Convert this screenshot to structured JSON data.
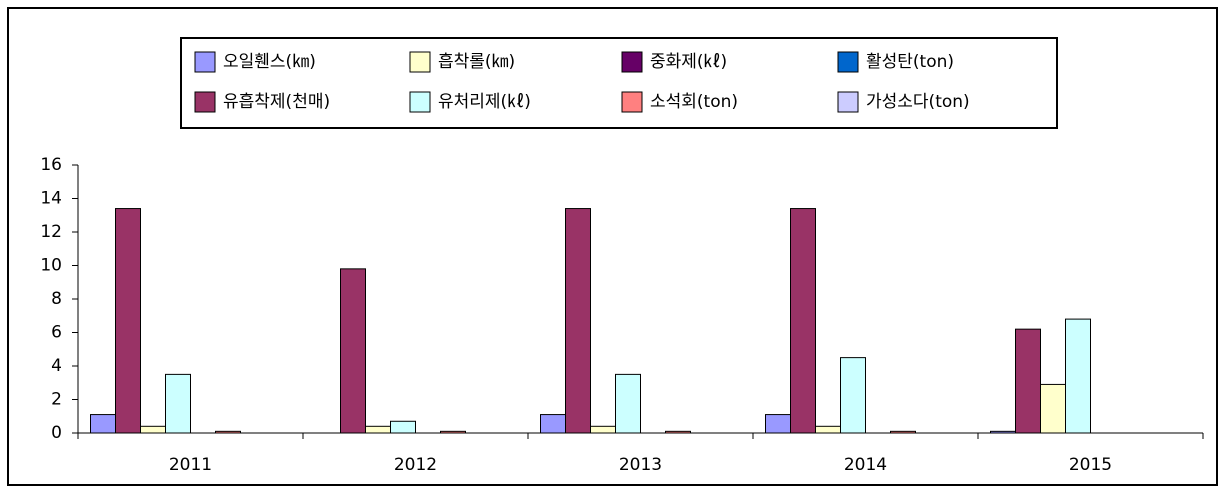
{
  "chart_data": {
    "type": "bar",
    "categories": [
      "2011",
      "2012",
      "2013",
      "2014",
      "2015"
    ],
    "series": [
      {
        "name": "오일휀스(㎞)",
        "color": "#9999ff",
        "values": [
          1.1,
          0,
          1.1,
          1.1,
          0.1
        ]
      },
      {
        "name": "유흡착제(천매)",
        "color": "#993366",
        "values": [
          13.4,
          9.8,
          13.4,
          13.4,
          6.2
        ]
      },
      {
        "name": "흡착롤(㎞)",
        "color": "#ffffcc",
        "values": [
          0.4,
          0.4,
          0.4,
          0.4,
          2.9
        ]
      },
      {
        "name": "유처리제(㎘)",
        "color": "#ccffff",
        "values": [
          3.5,
          0.7,
          3.5,
          4.5,
          6.8
        ]
      },
      {
        "name": "중화제(㎘)",
        "color": "#660066",
        "values": [
          0,
          0,
          0,
          0,
          0
        ]
      },
      {
        "name": "소석회(ton)",
        "color": "#ff8080",
        "values": [
          0.1,
          0.1,
          0.1,
          0.1,
          0
        ]
      },
      {
        "name": "활성탄(ton)",
        "color": "#0066cc",
        "values": [
          0,
          0,
          0,
          0,
          0
        ]
      },
      {
        "name": "가성소다(ton)",
        "color": "#ccccff",
        "values": [
          0,
          0,
          0,
          0,
          0
        ]
      }
    ],
    "ylim": [
      0,
      16
    ],
    "yticks": [
      0,
      2,
      4,
      6,
      8,
      10,
      12,
      14,
      16
    ],
    "grid": false,
    "legend": "top"
  }
}
